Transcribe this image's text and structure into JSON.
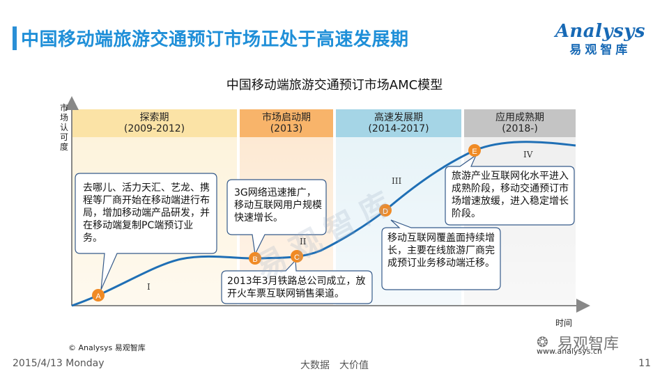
{
  "header": {
    "title": "中国移动端旅游交通预订市场正处于高速发展期",
    "logo_text": "Analysys",
    "logo_subtext": "易观智库"
  },
  "diagram": {
    "title": "中国移动端旅游交通预订市场AMC模型",
    "y_axis_label": "市场认可度",
    "x_axis_label": "时间",
    "phases": [
      {
        "name": "探索期",
        "period": "(2009-2012)",
        "color": "#fbe3a6"
      },
      {
        "name": "市场启动期",
        "period": "(2013)",
        "color": "#f8b46a"
      },
      {
        "name": "高速发展期",
        "period": "(2014-2017)",
        "color": "#a5d5e6"
      },
      {
        "name": "应用成熟期",
        "period": "(2018-)",
        "color": "#c4c4c4"
      }
    ],
    "stage_numerals": [
      "I",
      "II",
      "III",
      "IV"
    ],
    "points": [
      "A",
      "B",
      "C",
      "D",
      "E"
    ],
    "point_color": "#f08a24",
    "curve_color": "#1f6fb5",
    "callouts": [
      {
        "id": "A",
        "text": "去哪儿、活力天汇、艺龙、携程等厂商开始在移动端进行布局，增加移动端产品研发，并在移动端复制PC端预订业务。"
      },
      {
        "id": "B",
        "text": "3G网络迅速推广，移动互联网用户规模快速增长。"
      },
      {
        "id": "C",
        "text": "2013年3月铁路总公司成立，放开火车票互联网销售渠道。"
      },
      {
        "id": "D",
        "text": "移动互联网覆盖面持续增长，主要在线旅游厂商完成预订业务移动端迁移。"
      },
      {
        "id": "E",
        "text": "旅游产业互联网化水平进入成熟阶段，移动交通预订市场增速放缓，进入稳定增长阶段。"
      }
    ],
    "watermark": "易观智库"
  },
  "footer": {
    "copyright": "© Analysys 易观智库",
    "date": "2015/4/13 Monday",
    "slogan": "大数据　大价值",
    "page_number": "11",
    "website": "www.analysys.cn",
    "wechat_label": "易观智库"
  }
}
